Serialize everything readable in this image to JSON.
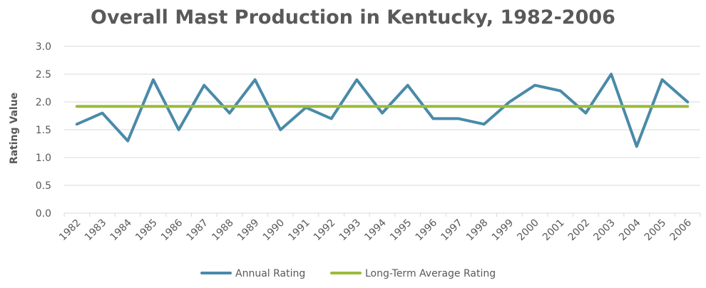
{
  "chart_data": {
    "type": "line",
    "title": "Overall Mast Production in Kentucky, 1982-2006",
    "xlabel": "",
    "ylabel": "Rating Value",
    "ylim": [
      0,
      3.0
    ],
    "yticks": [
      "0.0",
      "0.5",
      "1.0",
      "1.5",
      "2.0",
      "2.5",
      "3.0"
    ],
    "grid": true,
    "legend_position": "bottom",
    "categories": [
      "1982",
      "1983",
      "1984",
      "1985",
      "1986",
      "1987",
      "1988",
      "1989",
      "1990",
      "1991",
      "1992",
      "1993",
      "1994",
      "1995",
      "1996",
      "1997",
      "1998",
      "1999",
      "2000",
      "2001",
      "2002",
      "2003",
      "2004",
      "2005",
      "2006"
    ],
    "series": [
      {
        "name": "Annual Rating",
        "color": "#4a8aa9",
        "values": [
          1.6,
          1.8,
          1.3,
          2.4,
          1.5,
          2.3,
          1.8,
          2.4,
          1.5,
          1.9,
          1.7,
          2.4,
          1.8,
          2.3,
          1.7,
          1.7,
          1.6,
          2.0,
          2.3,
          2.2,
          1.8,
          2.5,
          1.2,
          2.4,
          2.0
        ]
      },
      {
        "name": "Long-Term Average Rating",
        "color": "#9bbb3b",
        "values": [
          1.92,
          1.92,
          1.92,
          1.92,
          1.92,
          1.92,
          1.92,
          1.92,
          1.92,
          1.92,
          1.92,
          1.92,
          1.92,
          1.92,
          1.92,
          1.92,
          1.92,
          1.92,
          1.92,
          1.92,
          1.92,
          1.92,
          1.92,
          1.92,
          1.92
        ]
      }
    ]
  }
}
